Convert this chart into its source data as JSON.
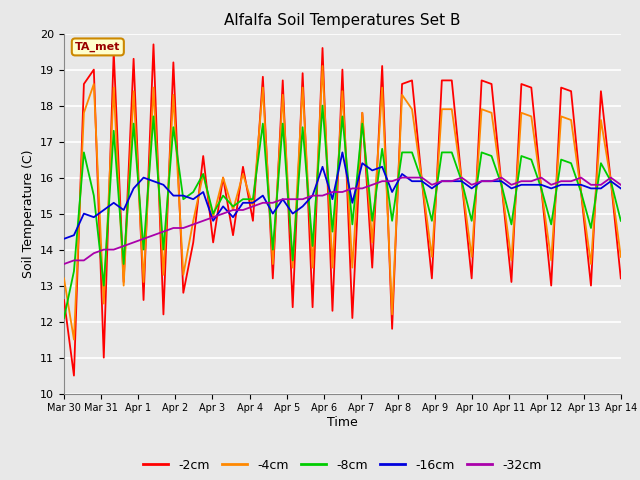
{
  "title": "Alfalfa Soil Temperatures Set B",
  "xlabel": "Time",
  "ylabel": "Soil Temperature (C)",
  "ylim": [
    10.0,
    20.0
  ],
  "yticks": [
    10.0,
    11.0,
    12.0,
    13.0,
    14.0,
    15.0,
    16.0,
    17.0,
    18.0,
    19.0,
    20.0
  ],
  "background_color": "#e8e8e8",
  "plot_bg_color": "#e8e8e8",
  "grid_color": "#ffffff",
  "annotation_text": "TA_met",
  "annotation_bg": "#ffffcc",
  "annotation_border": "#cc8800",
  "series_colors": {
    "-2cm": "#ff0000",
    "-4cm": "#ff8800",
    "-8cm": "#00cc00",
    "-16cm": "#0000dd",
    "-32cm": "#aa00aa"
  },
  "x_labels": [
    "Mar 30",
    "Mar 31",
    "Apr 1",
    "Apr 2",
    "Apr 3",
    "Apr 4",
    "Apr 5",
    "Apr 6",
    "Apr 7",
    "Apr 8",
    "Apr 9",
    "Apr 10",
    "Apr 11",
    "Apr 12",
    "Apr 13",
    "Apr 14"
  ],
  "data_2cm": [
    12.6,
    10.5,
    18.6,
    19.0,
    11.0,
    19.5,
    13.1,
    19.3,
    12.6,
    19.7,
    12.2,
    19.2,
    12.8,
    14.2,
    16.6,
    14.2,
    16.0,
    14.4,
    16.3,
    14.8,
    18.8,
    13.2,
    18.7,
    12.4,
    18.9,
    12.4,
    19.6,
    12.3,
    19.0,
    12.1,
    17.8,
    13.5,
    19.1,
    11.8,
    18.6,
    18.7,
    15.9,
    13.2,
    18.7,
    18.7,
    15.9,
    13.2,
    18.7,
    18.6,
    15.8,
    13.1,
    18.6,
    18.5,
    15.7,
    13.0,
    18.5,
    18.4,
    15.6,
    13.0,
    18.4,
    15.9,
    13.2
  ],
  "data_4cm": [
    13.2,
    11.5,
    17.8,
    18.6,
    12.5,
    18.5,
    13.0,
    18.4,
    13.1,
    18.5,
    13.3,
    18.3,
    13.3,
    14.8,
    16.1,
    14.9,
    16.0,
    15.1,
    16.1,
    15.2,
    18.5,
    13.6,
    18.3,
    13.5,
    18.5,
    13.5,
    19.1,
    13.5,
    18.4,
    13.5,
    17.8,
    14.2,
    18.5,
    12.2,
    18.3,
    17.9,
    15.9,
    13.8,
    17.9,
    17.9,
    15.9,
    13.8,
    17.9,
    17.8,
    15.8,
    13.7,
    17.8,
    17.7,
    15.7,
    13.7,
    17.7,
    17.6,
    15.6,
    13.6,
    17.6,
    15.9,
    13.8
  ],
  "data_8cm": [
    12.1,
    13.4,
    16.7,
    15.5,
    13.0,
    17.3,
    13.6,
    17.5,
    14.0,
    17.7,
    14.0,
    17.4,
    15.4,
    15.6,
    16.1,
    15.0,
    15.5,
    15.2,
    15.4,
    15.4,
    17.5,
    14.0,
    17.5,
    13.7,
    17.4,
    14.1,
    18.0,
    14.5,
    17.7,
    14.7,
    17.5,
    14.8,
    16.8,
    14.8,
    16.7,
    16.7,
    15.9,
    14.8,
    16.7,
    16.7,
    15.9,
    14.8,
    16.7,
    16.6,
    15.8,
    14.7,
    16.6,
    16.5,
    15.7,
    14.7,
    16.5,
    16.4,
    15.6,
    14.6,
    16.4,
    15.9,
    14.8
  ],
  "data_16cm": [
    14.3,
    14.4,
    15.0,
    14.9,
    15.1,
    15.3,
    15.1,
    15.7,
    16.0,
    15.9,
    15.8,
    15.5,
    15.5,
    15.4,
    15.6,
    14.8,
    15.2,
    14.9,
    15.3,
    15.3,
    15.5,
    15.0,
    15.4,
    15.0,
    15.2,
    15.5,
    16.3,
    15.4,
    16.7,
    15.3,
    16.4,
    16.2,
    16.3,
    15.6,
    16.1,
    15.9,
    15.9,
    15.7,
    15.9,
    15.9,
    15.9,
    15.7,
    15.9,
    15.9,
    15.9,
    15.7,
    15.8,
    15.8,
    15.8,
    15.7,
    15.8,
    15.8,
    15.8,
    15.7,
    15.7,
    15.9,
    15.7
  ],
  "data_32cm": [
    13.6,
    13.7,
    13.7,
    13.9,
    14.0,
    14.0,
    14.1,
    14.2,
    14.3,
    14.4,
    14.5,
    14.6,
    14.6,
    14.7,
    14.8,
    14.9,
    15.0,
    15.1,
    15.1,
    15.2,
    15.3,
    15.3,
    15.4,
    15.4,
    15.4,
    15.5,
    15.5,
    15.6,
    15.6,
    15.7,
    15.7,
    15.8,
    15.9,
    15.9,
    16.0,
    16.0,
    16.0,
    15.8,
    15.9,
    15.9,
    16.0,
    15.8,
    15.9,
    15.9,
    16.0,
    15.8,
    15.9,
    15.9,
    16.0,
    15.8,
    15.9,
    15.9,
    16.0,
    15.8,
    15.8,
    16.0,
    15.8
  ]
}
